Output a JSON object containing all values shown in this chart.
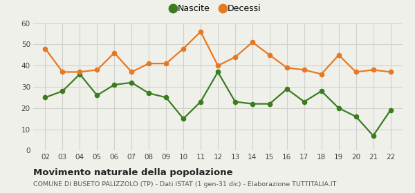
{
  "years": [
    2,
    3,
    4,
    5,
    6,
    7,
    8,
    9,
    10,
    11,
    12,
    13,
    14,
    15,
    16,
    17,
    18,
    19,
    20,
    21,
    22
  ],
  "nascite": [
    25,
    28,
    36,
    26,
    31,
    32,
    27,
    25,
    15,
    23,
    37,
    23,
    22,
    22,
    29,
    23,
    28,
    20,
    16,
    7,
    19
  ],
  "decessi": [
    48,
    37,
    37,
    38,
    46,
    37,
    41,
    41,
    48,
    56,
    40,
    44,
    51,
    45,
    39,
    38,
    36,
    45,
    37,
    38,
    37
  ],
  "nascite_color": "#3a7d1e",
  "decessi_color": "#e87820",
  "background_color": "#f0f0eb",
  "grid_color": "#d0d0cc",
  "title": "Movimento naturale della popolazione",
  "subtitle": "COMUNE DI BUSETO PALIZZOLO (TP) - Dati ISTAT (1 gen-31 dic) - Elaborazione TUTTITALIA.IT",
  "legend_nascite": "Nascite",
  "legend_decessi": "Decessi",
  "ylim": [
    0,
    60
  ],
  "yticks": [
    0,
    10,
    20,
    30,
    40,
    50,
    60
  ],
  "marker_size": 4.5,
  "line_width": 1.6
}
